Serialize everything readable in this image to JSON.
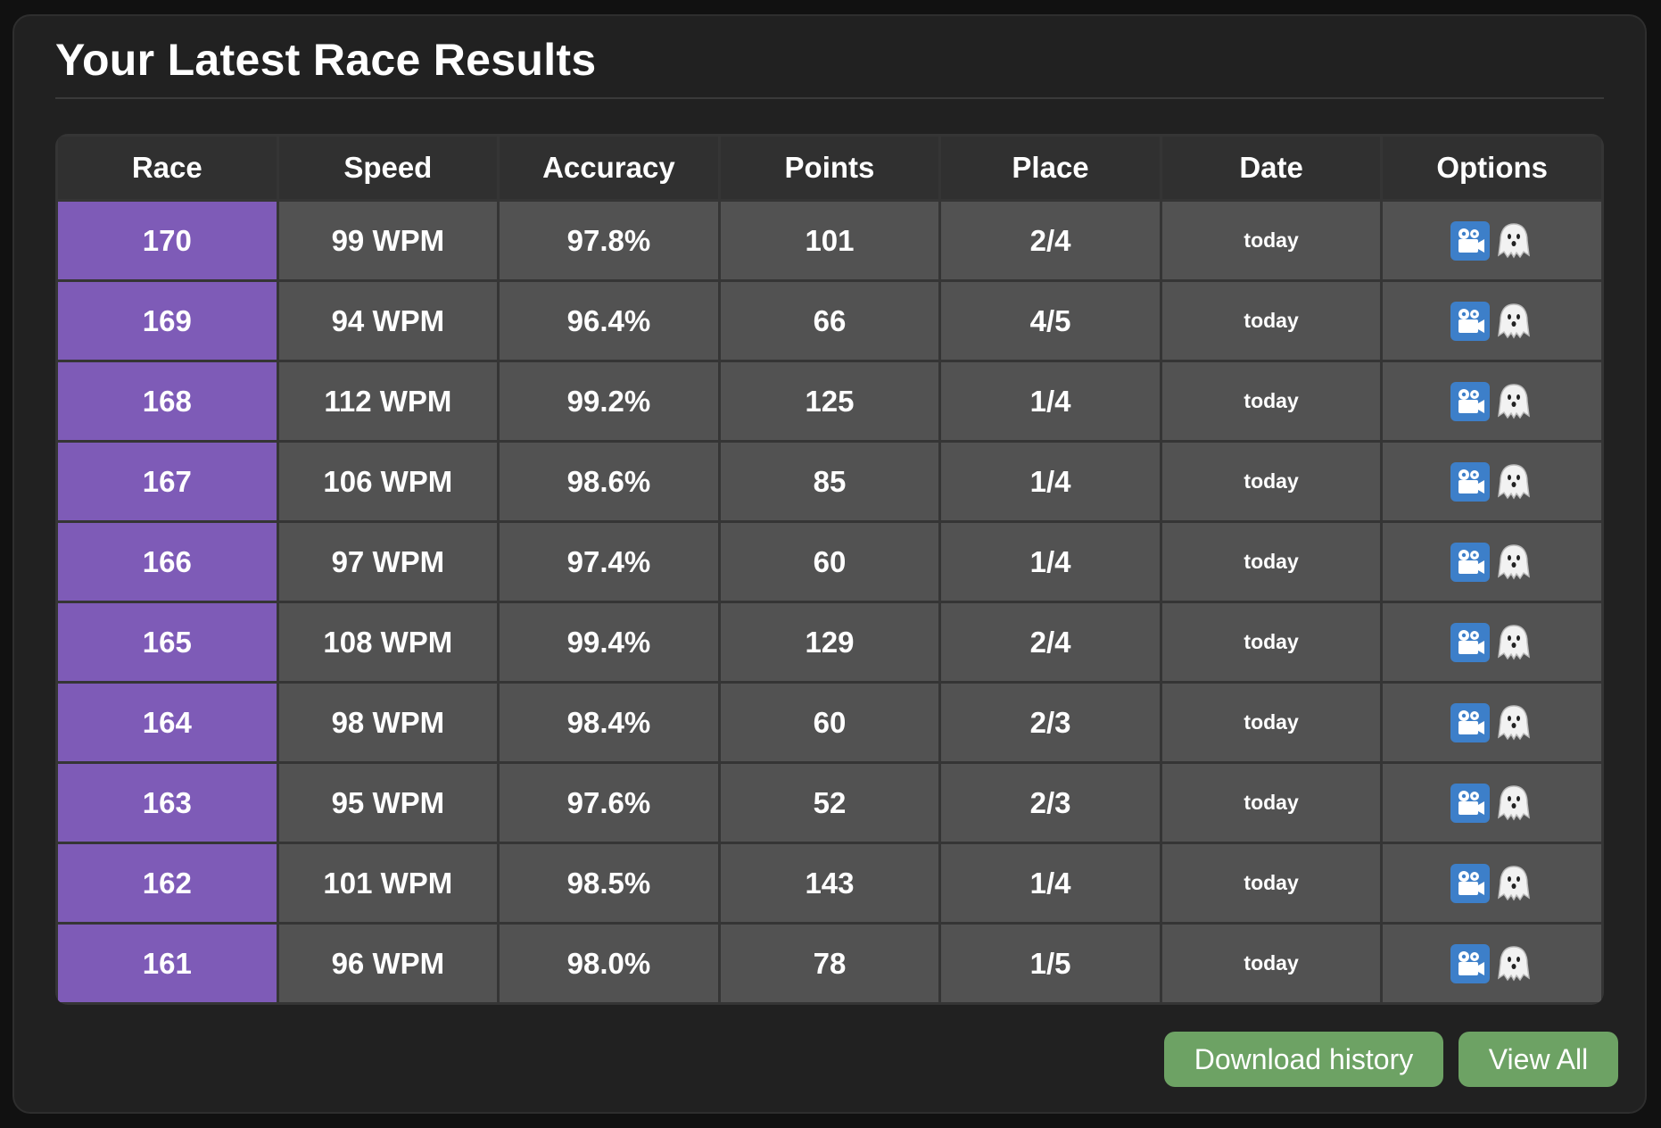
{
  "title": "Your Latest Race Results",
  "columns": [
    "Race",
    "Speed",
    "Accuracy",
    "Points",
    "Place",
    "Date",
    "Options"
  ],
  "rows": [
    {
      "race": "170",
      "speed": "99 WPM",
      "accuracy": "97.8%",
      "points": "101",
      "place": "2/4",
      "date": "today"
    },
    {
      "race": "169",
      "speed": "94 WPM",
      "accuracy": "96.4%",
      "points": "66",
      "place": "4/5",
      "date": "today"
    },
    {
      "race": "168",
      "speed": "112 WPM",
      "accuracy": "99.2%",
      "points": "125",
      "place": "1/4",
      "date": "today"
    },
    {
      "race": "167",
      "speed": "106 WPM",
      "accuracy": "98.6%",
      "points": "85",
      "place": "1/4",
      "date": "today"
    },
    {
      "race": "166",
      "speed": "97 WPM",
      "accuracy": "97.4%",
      "points": "60",
      "place": "1/4",
      "date": "today"
    },
    {
      "race": "165",
      "speed": "108 WPM",
      "accuracy": "99.4%",
      "points": "129",
      "place": "2/4",
      "date": "today"
    },
    {
      "race": "164",
      "speed": "98 WPM",
      "accuracy": "98.4%",
      "points": "60",
      "place": "2/3",
      "date": "today"
    },
    {
      "race": "163",
      "speed": "95 WPM",
      "accuracy": "97.6%",
      "points": "52",
      "place": "2/3",
      "date": "today"
    },
    {
      "race": "162",
      "speed": "101 WPM",
      "accuracy": "98.5%",
      "points": "143",
      "place": "1/4",
      "date": "today"
    },
    {
      "race": "161",
      "speed": "96 WPM",
      "accuracy": "98.0%",
      "points": "78",
      "place": "1/5",
      "date": "today"
    }
  ],
  "option_icons": [
    "replay-camera-icon",
    "ghost-icon"
  ],
  "buttons": {
    "download": "Download history",
    "view_all": "View All"
  },
  "colors": {
    "race_cell": "#7e5bb7",
    "button": "#6da264",
    "replay_icon": "#3d7fc9"
  }
}
